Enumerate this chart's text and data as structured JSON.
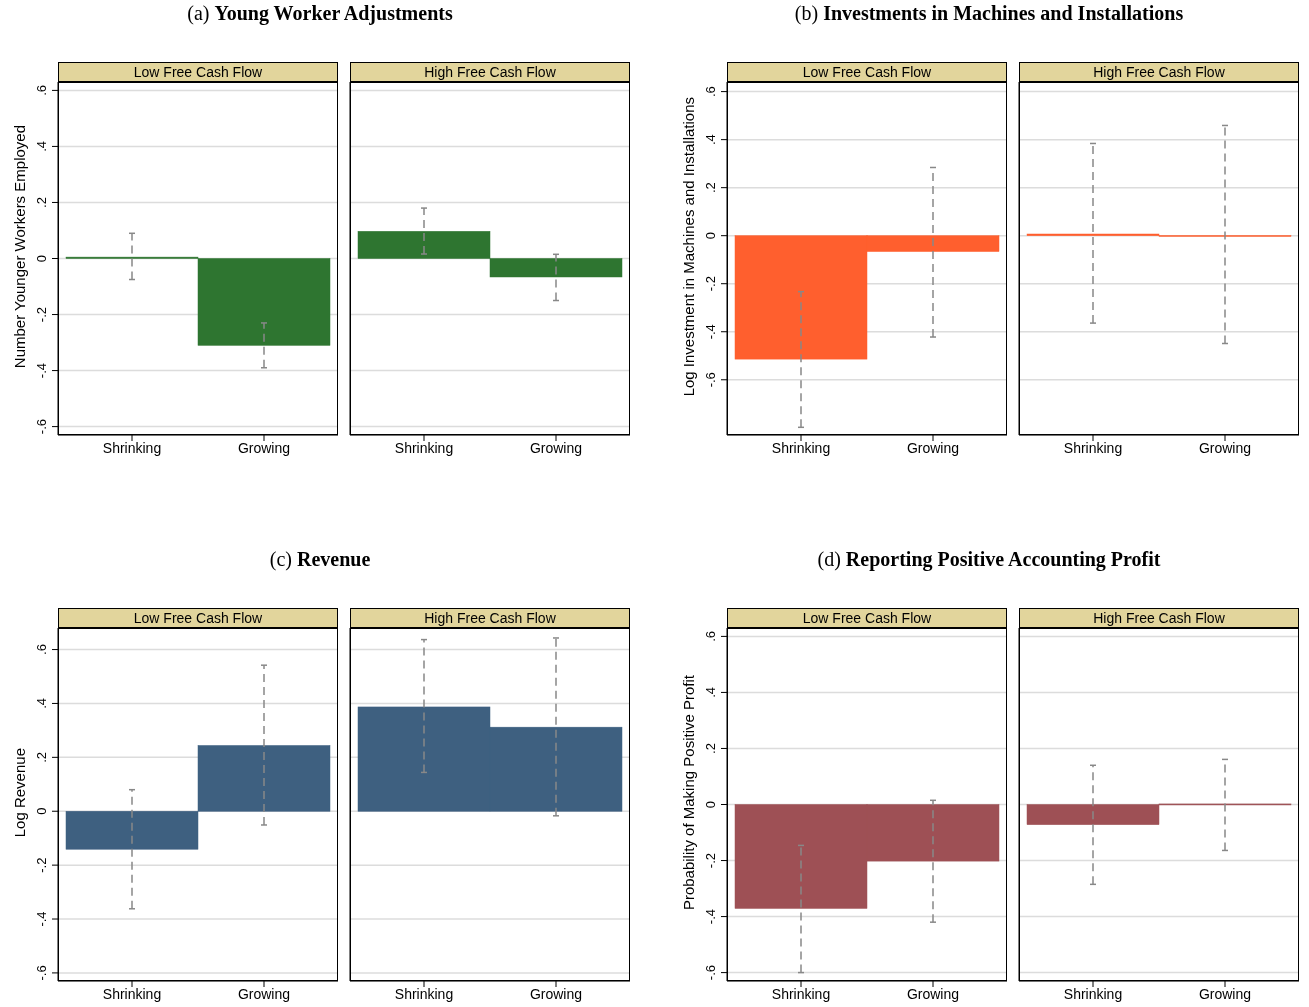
{
  "chart_data": [
    {
      "type": "bar",
      "title": "(a) Young Worker Adjustments",
      "subtitle": "Low Free Cash Flow",
      "ylabel": "Number Younger Workers Employed",
      "categories": [
        "Shrinking",
        "Growing"
      ],
      "values": [
        0.005,
        -0.31
      ],
      "errors": [
        [
          -0.075,
          0.09
        ],
        [
          -0.39,
          -0.23
        ]
      ],
      "color": "#2e7530",
      "ylim": [
        -0.63,
        0.63
      ],
      "yticks": [
        {
          "value": -0.6,
          "label": "-.6"
        },
        {
          "value": -0.4,
          "label": "-.4"
        },
        {
          "value": -0.2,
          "label": "-.2"
        },
        {
          "value": 0,
          "label": "0"
        },
        {
          "value": 0.2,
          "label": ".2"
        },
        {
          "value": 0.4,
          "label": ".4"
        },
        {
          "value": 0.6,
          "label": ".6"
        }
      ],
      "grid": "y"
    },
    {
      "type": "bar",
      "subtitle": "High Free Cash Flow",
      "categories": [
        "Shrinking",
        "Growing"
      ],
      "values": [
        0.097,
        -0.066
      ],
      "errors": [
        [
          0.016,
          0.18
        ],
        [
          -0.15,
          0.015
        ]
      ],
      "color": "#2e7530",
      "ylim": [
        -0.63,
        0.63
      ],
      "yticks": [
        -0.6,
        -0.4,
        -0.2,
        0,
        0.2,
        0.4,
        0.6
      ],
      "grid": "y",
      "tick_labels": "x"
    },
    {
      "type": "bar",
      "title": "(b) Investments in Machines and Installations",
      "subtitle": "Low Free Cash Flow",
      "ylabel": "Log Investment in Machines and Installations",
      "categories": [
        "Shrinking",
        "Growing"
      ],
      "values": [
        -0.514,
        -0.066
      ],
      "errors": [
        [
          -0.798,
          -0.233
        ],
        [
          -0.422,
          0.284
        ]
      ],
      "color": "#ff5f2e",
      "ylim": [
        -0.83,
        0.64
      ],
      "yticks": [
        {
          "value": -0.6,
          "label": "-.6"
        },
        {
          "value": -0.4,
          "label": "-.4"
        },
        {
          "value": -0.2,
          "label": "-.2"
        },
        {
          "value": 0,
          "label": "0"
        },
        {
          "value": 0.2,
          "label": ".2"
        },
        {
          "value": 0.4,
          "label": ".4"
        },
        {
          "value": 0.6,
          "label": ".6"
        }
      ],
      "grid": "y"
    },
    {
      "type": "bar",
      "subtitle": "High Free Cash Flow",
      "categories": [
        "Shrinking",
        "Growing"
      ],
      "values": [
        0.007,
        0.001
      ],
      "errors": [
        [
          -0.364,
          0.384
        ],
        [
          -0.449,
          0.459
        ]
      ],
      "color": "#ff5f2e",
      "ylim": [
        -0.83,
        0.64
      ],
      "yticks": [
        -0.6,
        -0.4,
        -0.2,
        0,
        0.2,
        0.4,
        0.6
      ],
      "grid": "y",
      "tick_labels": "x"
    },
    {
      "type": "bar",
      "title": "(c) Revenue",
      "subtitle": "Low Free Cash Flow",
      "ylabel": "Log Revenue",
      "categories": [
        "Shrinking",
        "Growing"
      ],
      "values": [
        -0.141,
        0.244
      ],
      "errors": [
        [
          -0.362,
          0.08
        ],
        [
          -0.051,
          0.542
        ]
      ],
      "color": "#3e6080",
      "ylim": [
        -0.63,
        0.68
      ],
      "yticks": [
        {
          "value": -0.6,
          "label": "-.6"
        },
        {
          "value": -0.4,
          "label": "-.4"
        },
        {
          "value": -0.2,
          "label": "-.2"
        },
        {
          "value": 0,
          "label": "0"
        },
        {
          "value": 0.2,
          "label": ".2"
        },
        {
          "value": 0.4,
          "label": ".4"
        },
        {
          "value": 0.6,
          "label": ".6"
        }
      ],
      "grid": "y"
    },
    {
      "type": "bar",
      "subtitle": "High Free Cash Flow",
      "categories": [
        "Shrinking",
        "Growing"
      ],
      "values": [
        0.387,
        0.312
      ],
      "errors": [
        [
          0.144,
          0.637
        ],
        [
          -0.017,
          0.643
        ]
      ],
      "color": "#3e6080",
      "ylim": [
        -0.63,
        0.68
      ],
      "yticks": [
        -0.6,
        -0.4,
        -0.2,
        0,
        0.2,
        0.4,
        0.6
      ],
      "grid": "y",
      "tick_labels": "x"
    },
    {
      "type": "bar",
      "title": "(d) Reporting Positive Accounting Profit",
      "subtitle": "Low Free Cash Flow",
      "ylabel": "Probability of Making Positive Profit",
      "categories": [
        "Shrinking",
        "Growing"
      ],
      "values": [
        -0.371,
        -0.202
      ],
      "errors": [
        [
          -0.6,
          -0.146
        ],
        [
          -0.42,
          0.015
        ]
      ],
      "color": "#9e5055",
      "ylim": [
        -0.63,
        0.63
      ],
      "yticks": [
        {
          "value": -0.6,
          "label": "-.6"
        },
        {
          "value": -0.4,
          "label": "-.4"
        },
        {
          "value": -0.2,
          "label": "-.2"
        },
        {
          "value": 0,
          "label": "0"
        },
        {
          "value": 0.2,
          "label": ".2"
        },
        {
          "value": 0.4,
          "label": ".4"
        },
        {
          "value": 0.6,
          "label": ".6"
        }
      ],
      "grid": "y"
    },
    {
      "type": "bar",
      "subtitle": "High Free Cash Flow",
      "categories": [
        "Shrinking",
        "Growing"
      ],
      "values": [
        -0.072,
        0.002
      ],
      "errors": [
        [
          -0.285,
          0.14
        ],
        [
          -0.164,
          0.161
        ]
      ],
      "color": "#9e5055",
      "ylim": [
        -0.63,
        0.63
      ],
      "yticks": [
        -0.6,
        -0.4,
        -0.2,
        0,
        0.2,
        0.4,
        0.6
      ],
      "grid": "y",
      "tick_labels": "x"
    }
  ]
}
